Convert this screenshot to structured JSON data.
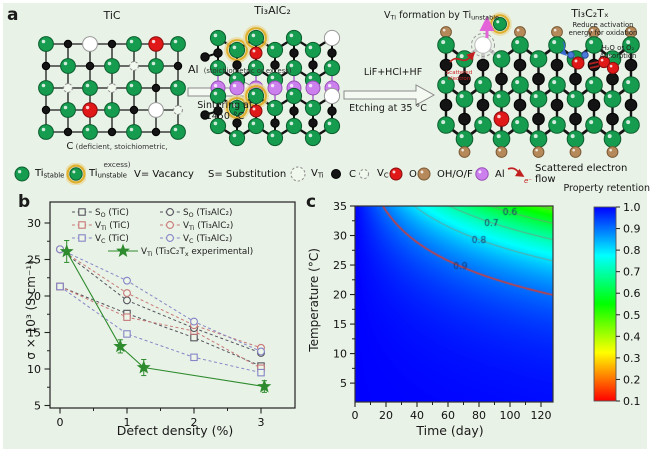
{
  "figure": {
    "bg": "#e9f2e6",
    "marker_fill": "#edf4e8"
  },
  "panel_a": {
    "label": "a",
    "structures": {
      "tic": {
        "title": "TiC",
        "c_note_prefix": "C",
        "c_note_line1": " (deficient, stoichiometric,",
        "c_note_line2": "excess)"
      },
      "ti3alc2": {
        "title": "Ti₃AlC₂"
      },
      "ti3c2tx": {
        "title": "Ti₃C₂Tₓ"
      }
    },
    "arrow1": {
      "reagent": "Al",
      "reagent_note": "(stoichiometric or excess)",
      "condition1": "Sintering at",
      "condition2": "1450 °C"
    },
    "arrow2": {
      "reagent": "LiF+HCl+HF",
      "condition": "Etching at 35 °C"
    },
    "vti_formation": [
      {
        "t": "V"
      },
      {
        "t": "Ti",
        "sub": true
      },
      {
        "t": " formation by Ti"
      },
      {
        "t": "unstable",
        "sub": true
      }
    ],
    "annotations": {
      "scattered_electron": [
        "Scattered",
        "electron"
      ],
      "reduce_activation": [
        "Reduce activation",
        "energy for oxidation"
      ],
      "adsorption": [
        "H₂O  or O₂",
        "Adsorption"
      ]
    },
    "atom_colors": {
      "ti": "#169c4f",
      "c": "#141414",
      "o": "#e01818",
      "ohof": "#b5895a",
      "al": "#cc80ee",
      "halo": "#dfaf2e",
      "vacancy": "#ffffff"
    }
  },
  "legend_a": {
    "items": [
      {
        "icon": "ti-stable-icon",
        "label": [
          {
            "t": "Ti"
          },
          {
            "t": "stable",
            "sub": true
          }
        ]
      },
      {
        "icon": "ti-unstable-icon",
        "label": [
          {
            "t": "Ti"
          },
          {
            "t": "unstable",
            "sub": true
          }
        ]
      },
      {
        "icon": "none",
        "label": [
          {
            "t": "V= Vacancy"
          }
        ]
      },
      {
        "icon": "none",
        "label": [
          {
            "t": "S= Substitution"
          }
        ]
      },
      {
        "icon": "v-ti-icon",
        "label": [
          {
            "t": "V"
          },
          {
            "t": "Ti",
            "sub": true
          }
        ]
      },
      {
        "icon": "c-atom-icon",
        "label": [
          {
            "t": "C"
          }
        ]
      },
      {
        "icon": "v-c-icon",
        "label": [
          {
            "t": "V"
          },
          {
            "t": "C",
            "sub": true
          }
        ]
      },
      {
        "icon": "o-atom-icon",
        "label": [
          {
            "t": "O"
          }
        ]
      },
      {
        "icon": "ohof-atom-icon",
        "label": [
          {
            "t": "OH/O/F"
          }
        ]
      },
      {
        "icon": "al-atom-icon",
        "label": [
          {
            "t": "Al"
          }
        ]
      },
      {
        "icon": "electron-arrow-icon",
        "symbol": "e⁻",
        "label": [
          {
            "t": "Scattered electron flow"
          }
        ]
      }
    ]
  },
  "chart_data": [
    {
      "id": "panel_b",
      "type": "scatter",
      "panel_label": "b",
      "xlabel": "Defect density (%)",
      "ylabel": "σ × 10³ (S cm⁻¹)",
      "xticks": [
        0,
        1,
        2,
        3
      ],
      "yticks": [
        5,
        10,
        15,
        20,
        25,
        30
      ],
      "xlim": [
        -0.25,
        3.45
      ],
      "ylim": [
        4.5,
        32.5
      ],
      "grid": false,
      "legend_position": "top-inside",
      "series": [
        {
          "name": [
            {
              "t": "S"
            },
            {
              "t": "O",
              "sub": true
            },
            {
              "t": " (TiC)"
            }
          ],
          "marker": "square",
          "color": "#53525e",
          "x": [
            0,
            1,
            2,
            3
          ],
          "y": [
            21.3,
            17.6,
            14.3,
            10.4
          ]
        },
        {
          "name": [
            {
              "t": "V"
            },
            {
              "t": "Ti",
              "sub": true
            },
            {
              "t": " (TiC)"
            }
          ],
          "marker": "square",
          "color": "#c87878",
          "x": [
            0,
            1,
            2,
            3
          ],
          "y": [
            21.3,
            17.1,
            15.2,
            10.1
          ]
        },
        {
          "name": [
            {
              "t": "V"
            },
            {
              "t": "C",
              "sub": true
            },
            {
              "t": " (TiC)"
            }
          ],
          "marker": "square",
          "color": "#8585c8",
          "x": [
            0,
            1,
            2,
            3
          ],
          "y": [
            21.3,
            14.8,
            11.6,
            9.5
          ]
        },
        {
          "name": [
            {
              "t": "S"
            },
            {
              "t": "O",
              "sub": true
            },
            {
              "t": " (Ti₃AlC₂)"
            }
          ],
          "marker": "circle",
          "color": "#53525e",
          "x": [
            0,
            1,
            2,
            3
          ],
          "y": [
            26.4,
            19.4,
            15.6,
            12.2
          ]
        },
        {
          "name": [
            {
              "t": "V"
            },
            {
              "t": "Ti",
              "sub": true
            },
            {
              "t": " (Ti₃AlC₂)"
            }
          ],
          "marker": "circle",
          "color": "#c87878",
          "x": [
            0,
            1,
            2,
            3
          ],
          "y": [
            26.4,
            20.4,
            16.0,
            12.9
          ]
        },
        {
          "name": [
            {
              "t": "V"
            },
            {
              "t": "C",
              "sub": true
            },
            {
              "t": " (Ti₃AlC₂)"
            }
          ],
          "marker": "circle",
          "color": "#8585c8",
          "x": [
            0,
            1,
            2,
            3
          ],
          "y": [
            26.4,
            22.1,
            16.5,
            12.4
          ]
        }
      ],
      "experimental": {
        "name": [
          {
            "t": "V"
          },
          {
            "t": "Ti",
            "sub": true
          },
          {
            "t": " (Ti₃C₂T"
          },
          {
            "t": "x",
            "sub": true
          },
          {
            "t": " experimental)"
          }
        ],
        "marker": "star",
        "color": "#2e8b2e",
        "x": [
          0.1,
          0.9,
          1.25,
          3.05
        ],
        "y": [
          26.1,
          13.1,
          10.2,
          7.6
        ],
        "yerr": [
          1.5,
          0.9,
          1.1,
          0.8
        ]
      }
    },
    {
      "id": "panel_c",
      "type": "contour",
      "panel_label": "c",
      "title": "Property retention",
      "xlabel": "Time (day)",
      "ylabel": "Temperature (°C)",
      "xticks": [
        0,
        20,
        40,
        60,
        80,
        100,
        120
      ],
      "yticks": [
        5,
        10,
        15,
        20,
        25,
        30,
        35
      ],
      "xlim": [
        0,
        128
      ],
      "ylim": [
        1.8,
        35
      ],
      "colorbar": {
        "ticks": [
          "1.0",
          "0.9",
          "0.8",
          "0.7",
          "0.6",
          "0.5",
          "0.4",
          "0.3",
          "0.2",
          "0.1"
        ],
        "vmin": 0.1,
        "vmax": 1.0
      },
      "field_model": {
        "formula": "R = exp(-t / (tau0 * exp(b*(35-T))))",
        "tau0": 171,
        "b": 0.13
      },
      "contours": {
        "levels": [
          0.5,
          0.6,
          0.7,
          0.8
        ],
        "line_color": "#7d917d",
        "highlight_level": 0.9,
        "highlight_color": "#c84040"
      },
      "contour_labels": [
        {
          "text": "0.6",
          "t": 100
        },
        {
          "text": "0.7",
          "t": 88
        },
        {
          "text": "0.8",
          "t": 80
        },
        {
          "text": "0.9",
          "t": 68
        }
      ],
      "label_color": "#1c3668"
    }
  ]
}
